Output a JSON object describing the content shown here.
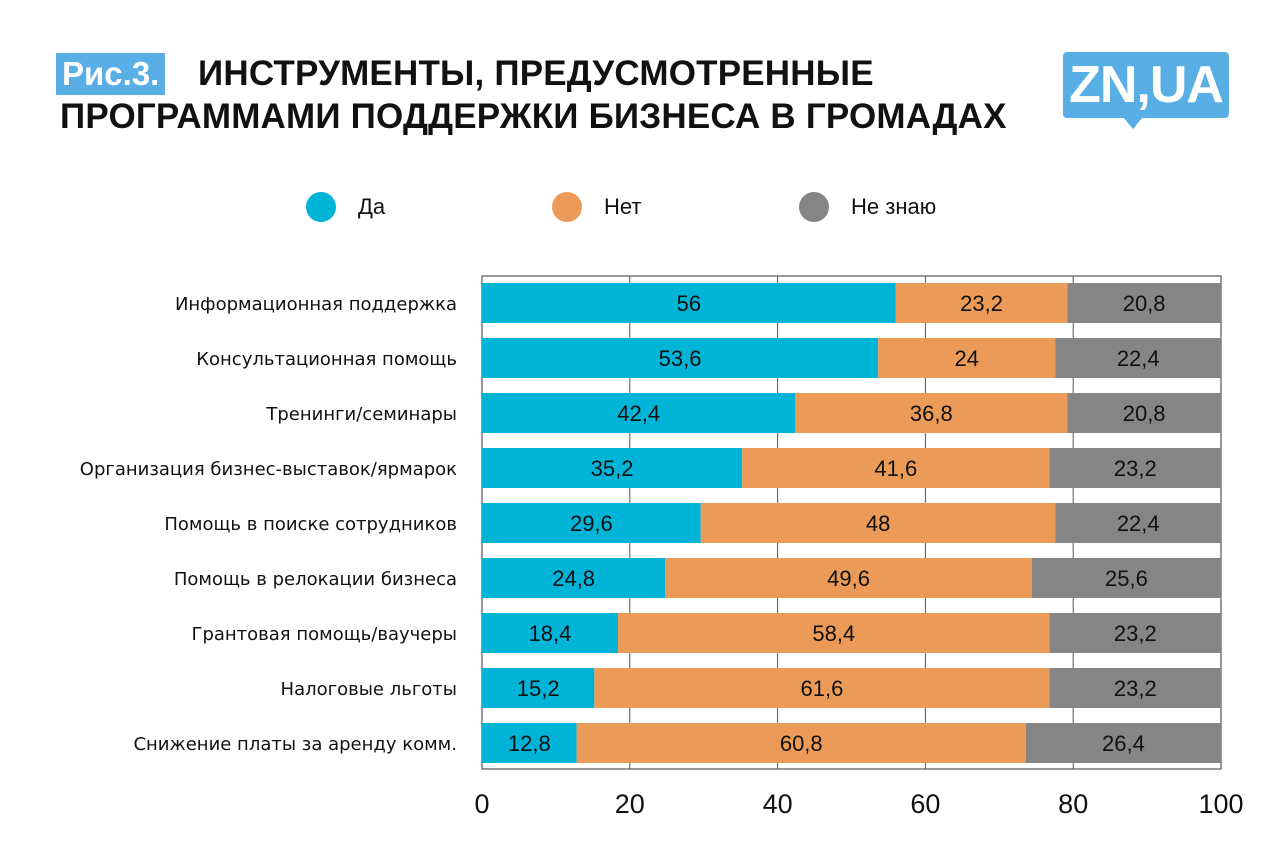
{
  "header": {
    "figure_label": "Рис.3.",
    "title_line1": "ИНСТРУМЕНТЫ, ПРЕДУСМОТРЕННЫЕ",
    "title_line2": "ПРОГРАММАМИ ПОДДЕРЖКИ БИЗНЕСА В ГРОМАДАХ",
    "logo_text": "ZN,UA"
  },
  "colors": {
    "da": "#00b4d8",
    "net": "#ec9a57",
    "ne_znayu": "#858585",
    "badge": "#5aaee6",
    "grid": "#555555"
  },
  "chart_data": {
    "type": "bar",
    "orientation": "horizontal",
    "stacked": true,
    "title": "ИНСТРУМЕНТЫ, ПРЕДУСМОТРЕННЫЕ ПРОГРАММАМИ ПОДДЕРЖКИ БИЗНЕСА В ГРОМАДАХ",
    "xlabel": "",
    "ylabel": "",
    "xlim": [
      0,
      100
    ],
    "xticks": [
      0,
      20,
      40,
      60,
      80,
      100
    ],
    "grid": true,
    "legend_position": "top",
    "categories": [
      "Информационная поддержка",
      "Консультационная помощь",
      "Тренинги/семинары",
      "Организация бизнес-выставок/ярмарок",
      "Помощь в поиске сотрудников",
      "Помощь в релокации бизнеса",
      "Грантовая помощь/ваучеры",
      "Налоговые льготы",
      "Снижение платы за аренду комм."
    ],
    "series": [
      {
        "name": "Да",
        "color": "#00b4d8",
        "values": [
          56,
          53.6,
          42.4,
          35.2,
          29.6,
          24.8,
          18.4,
          15.2,
          12.8
        ],
        "labels": [
          "56",
          "53,6",
          "42,4",
          "35,2",
          "29,6",
          "24,8",
          "18,4",
          "15,2",
          "12,8"
        ]
      },
      {
        "name": "Нет",
        "color": "#ec9a57",
        "values": [
          23.2,
          24,
          36.8,
          41.6,
          48,
          49.6,
          58.4,
          61.6,
          60.8
        ],
        "labels": [
          "23,2",
          "24",
          "36,8",
          "41,6",
          "48",
          "49,6",
          "58,4",
          "61,6",
          "60,8"
        ]
      },
      {
        "name": "Не знаю",
        "color": "#858585",
        "values": [
          20.8,
          22.4,
          20.8,
          23.2,
          22.4,
          25.6,
          23.2,
          23.2,
          26.4
        ],
        "labels": [
          "20,8",
          "22,4",
          "20,8",
          "23,2",
          "22,4",
          "25,6",
          "23,2",
          "23,2",
          "26,4"
        ]
      }
    ]
  }
}
